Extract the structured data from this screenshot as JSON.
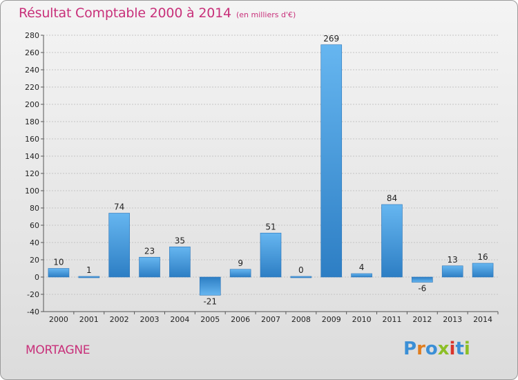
{
  "chart_data": {
    "type": "bar",
    "title": "Résultat Comptable 2000 à 2014",
    "subtitle": "(en milliers d'€)",
    "categories": [
      "2000",
      "2001",
      "2002",
      "2003",
      "2004",
      "2005",
      "2006",
      "2007",
      "2008",
      "2009",
      "2010",
      "2011",
      "2012",
      "2013",
      "2014"
    ],
    "values": [
      10,
      1,
      74,
      23,
      35,
      -21,
      9,
      51,
      0,
      269,
      4,
      84,
      -6,
      13,
      16
    ],
    "ylim": [
      -40,
      280
    ],
    "yticks": [
      -40,
      -20,
      0,
      20,
      40,
      60,
      80,
      100,
      120,
      140,
      160,
      180,
      200,
      220,
      240,
      260,
      280
    ],
    "xlabel": "",
    "ylabel": "",
    "grid": true,
    "bar_color": "#3d8fd6"
  },
  "commune": "MORTAGNE",
  "logo": {
    "letters": [
      "P",
      "r",
      "o",
      "x",
      "i",
      "t",
      "i"
    ]
  },
  "colors": {
    "title": "#c8307a",
    "bar_light": "#5fb0ec",
    "bar_dark": "#2e7fc6"
  }
}
